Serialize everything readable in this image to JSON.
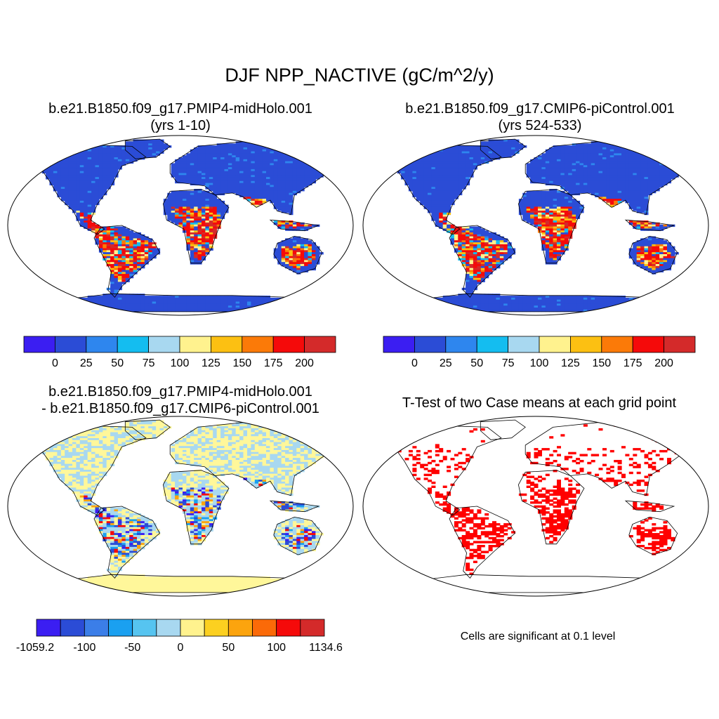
{
  "title": "DJF NPP_NACTIVE (gC/m^2/y)",
  "panels": [
    {
      "line1": "b.e21.B1850.f09_g17.PMIP4-midHolo.001",
      "line2": "(yrs 1-10)",
      "colorbar": {
        "colors": [
          "#3b1ef2",
          "#2b4cd6",
          "#2e86ee",
          "#14bdf0",
          "#a8d8f0",
          "#fff28e",
          "#fcc012",
          "#fb7a08",
          "#f50a0a",
          "#d42a2a"
        ],
        "labels": [
          "0",
          "25",
          "50",
          "75",
          "100",
          "125",
          "150",
          "175",
          "200"
        ]
      }
    },
    {
      "line1": "b.e21.B1850.f09_g17.CMIP6-piControl.001",
      "line2": "(yrs 524-533)",
      "colorbar": {
        "colors": [
          "#3b1ef2",
          "#2b4cd6",
          "#2e86ee",
          "#14bdf0",
          "#a8d8f0",
          "#fff28e",
          "#fcc012",
          "#fb7a08",
          "#f50a0a",
          "#d42a2a"
        ],
        "labels": [
          "0",
          "25",
          "50",
          "75",
          "100",
          "125",
          "150",
          "175",
          "200"
        ]
      }
    },
    {
      "line1": "b.e21.B1850.f09_g17.PMIP4-midHolo.001",
      "line2": "- b.e21.B1850.f09_g17.CMIP6-piControl.001",
      "colorbar": {
        "colors": [
          "#3b1ef2",
          "#2b4cd6",
          "#3b7ee8",
          "#1aa0f0",
          "#56c4f0",
          "#a8d8f0",
          "#fff28e",
          "#fcd020",
          "#fca40e",
          "#fb6a08",
          "#f50a0a",
          "#d42a2a"
        ],
        "labels": [
          "-1059.2",
          "-100",
          "-50",
          "0",
          "50",
          "100",
          "1134.6"
        ]
      }
    },
    {
      "line1": "T-Test of two Case means at each grid point",
      "note": "Cells are significant at 0.1 level",
      "mark_color": "#ff0000"
    }
  ],
  "map_colors": {
    "ocean": "#ffffff",
    "land_abs": "#2e4fd6",
    "land_diff": "#fff79a",
    "diff_light": "#a8d8f0",
    "outline": "#000000"
  }
}
